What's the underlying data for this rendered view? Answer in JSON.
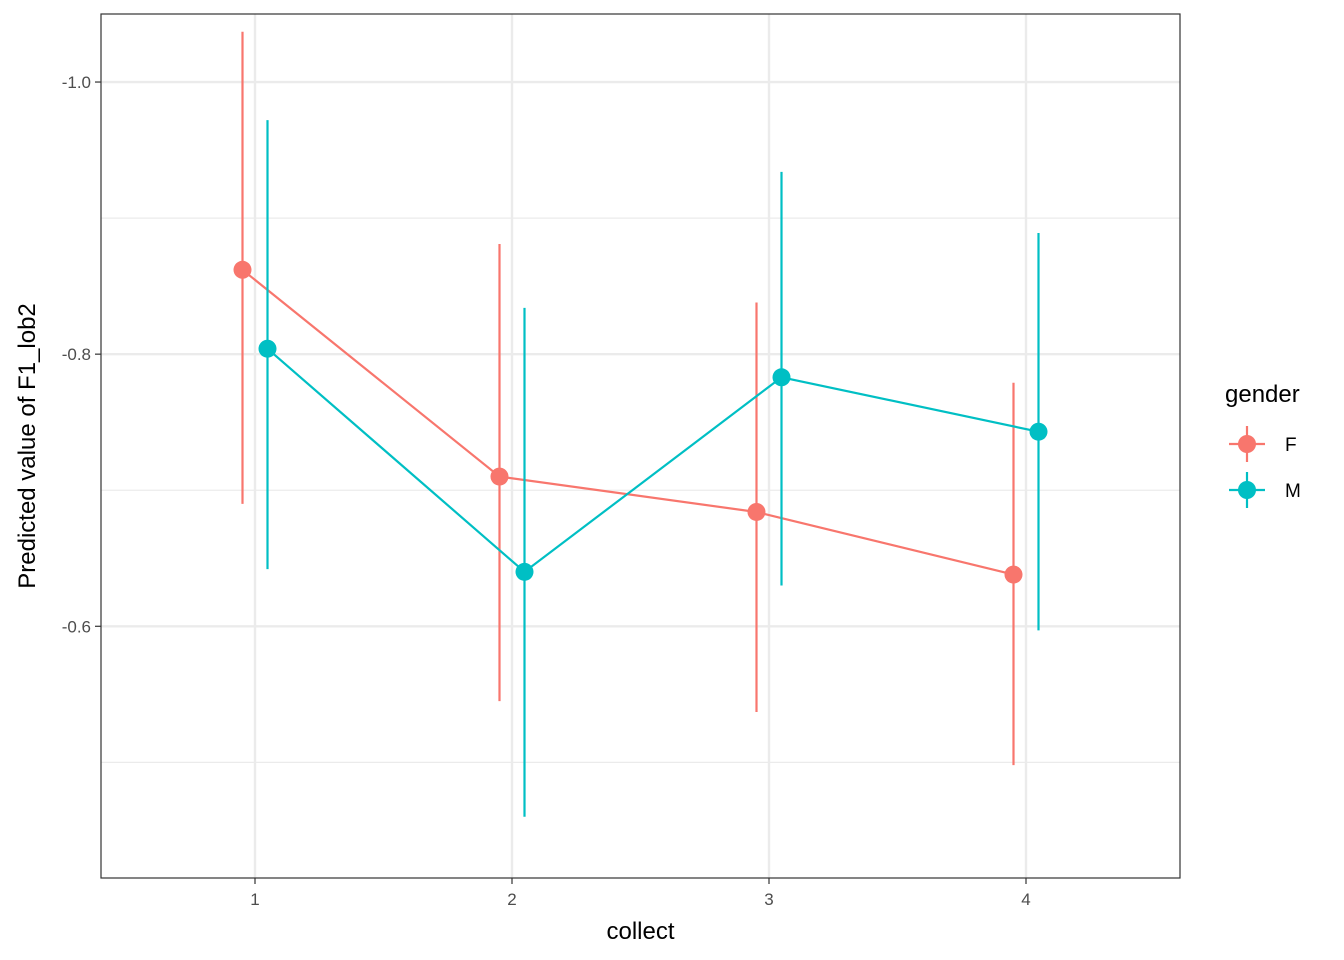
{
  "chart_data": {
    "type": "line",
    "subtype": "point-range with connecting lines",
    "x_categories": [
      "1",
      "2",
      "3",
      "4"
    ],
    "xlabel": "collect",
    "ylabel": "Predicted value of F1_lob2",
    "y_axis_reversed": true,
    "ylim": [
      -1.05,
      -0.415
    ],
    "y_ticks": [
      -1.0,
      -0.8,
      -0.6
    ],
    "y_tick_labels": [
      "-1.0",
      "-0.8",
      "-0.6"
    ],
    "grid": true,
    "legend": {
      "title": "gender",
      "placement": "right"
    },
    "series": [
      {
        "name": "F",
        "color": "#F8766D",
        "points": [
          {
            "x": 1,
            "y": -0.862,
            "low": -1.037,
            "high": -0.69
          },
          {
            "x": 2,
            "y": -0.71,
            "low": -0.881,
            "high": -0.545
          },
          {
            "x": 3,
            "y": -0.684,
            "low": -0.838,
            "high": -0.537
          },
          {
            "x": 4,
            "y": -0.638,
            "low": -0.779,
            "high": -0.498
          }
        ]
      },
      {
        "name": "M",
        "color": "#00BFC4",
        "points": [
          {
            "x": 1,
            "y": -0.804,
            "low": -0.972,
            "high": -0.642
          },
          {
            "x": 2,
            "y": -0.64,
            "low": -0.834,
            "high": -0.46
          },
          {
            "x": 3,
            "y": -0.783,
            "low": -0.934,
            "high": -0.63
          },
          {
            "x": 4,
            "y": -0.743,
            "low": -0.889,
            "high": -0.597
          }
        ]
      }
    ]
  }
}
